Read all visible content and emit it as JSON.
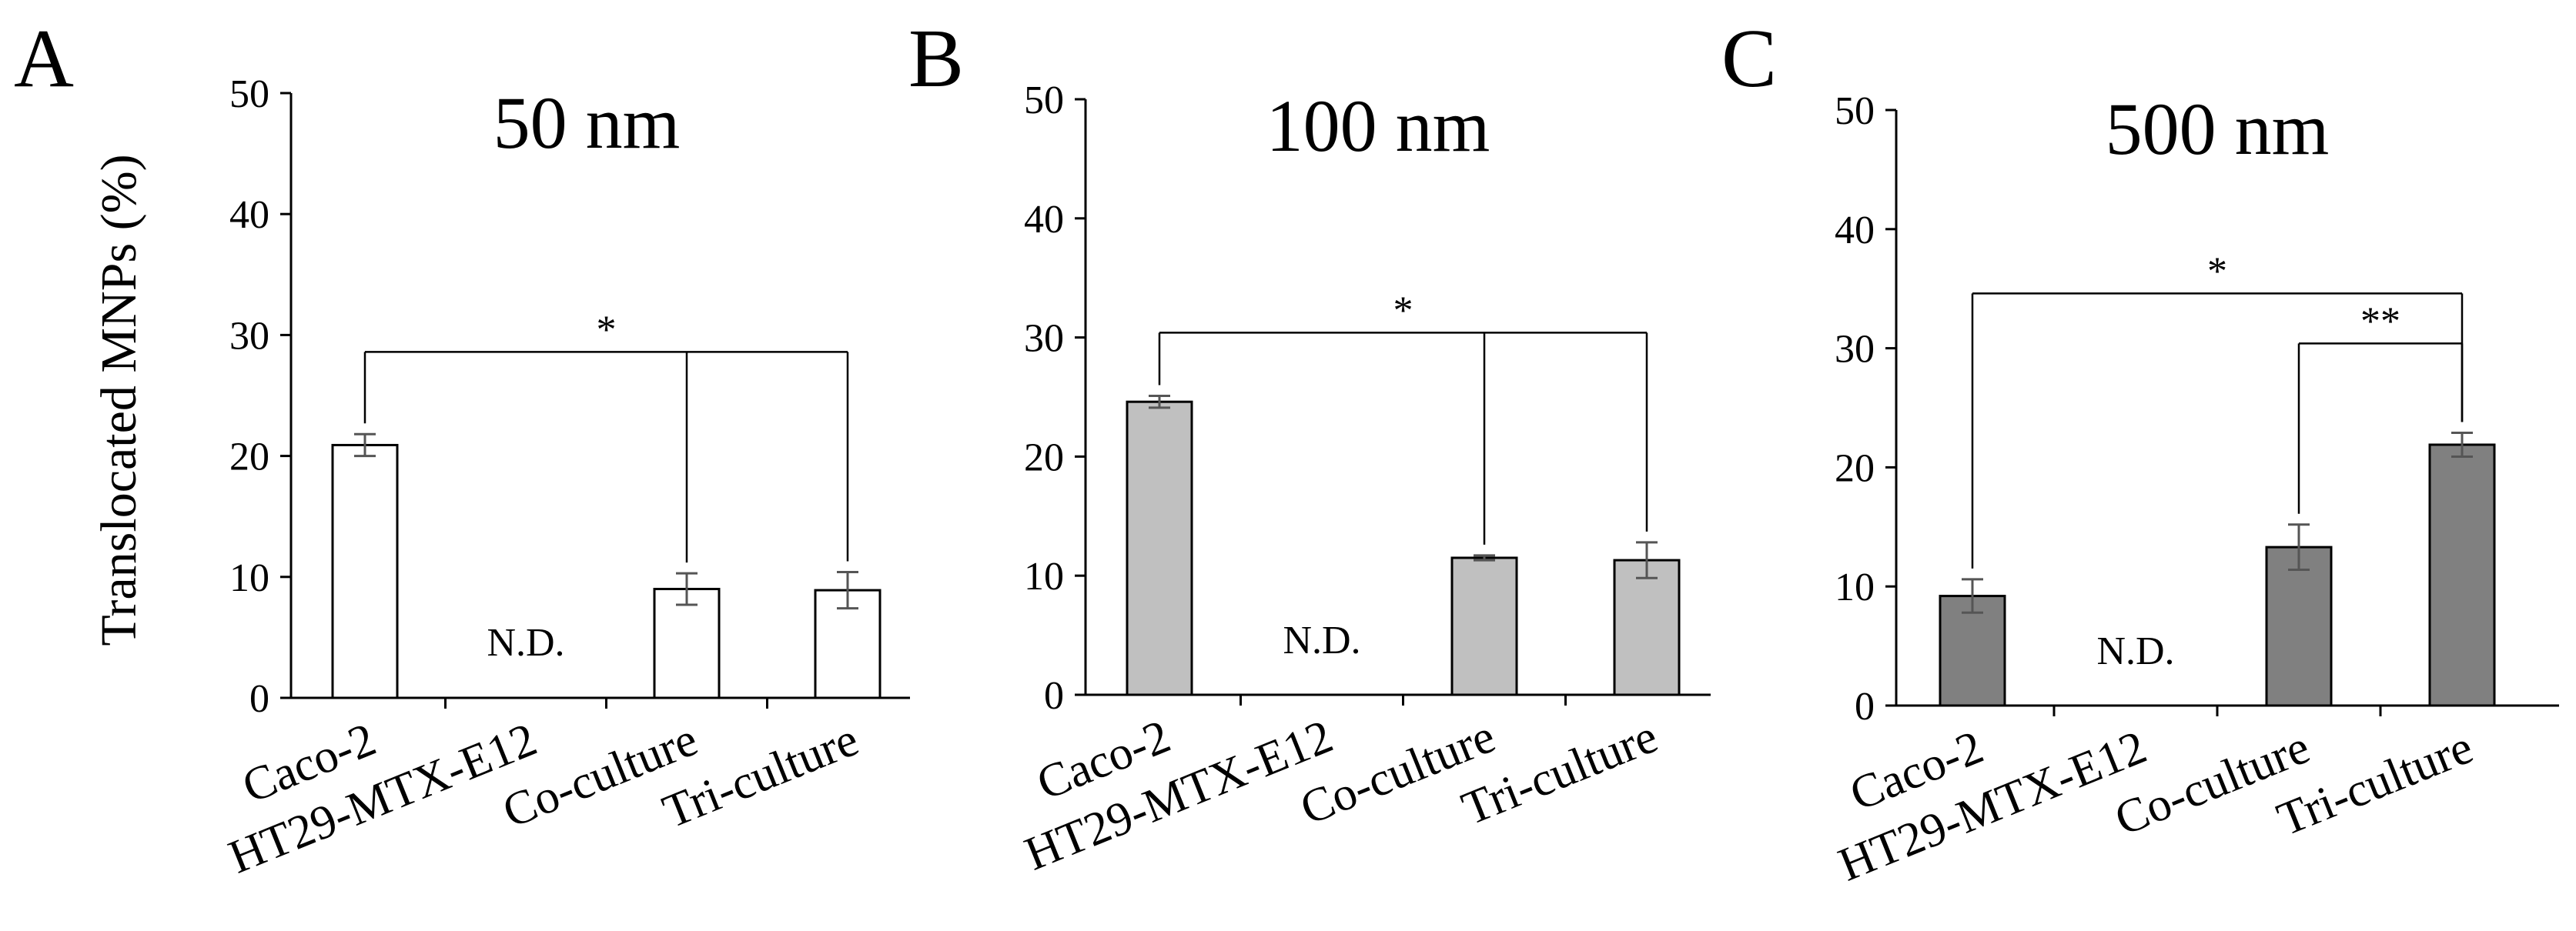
{
  "figure": {
    "ylabel": "Translocated MNPs (%)"
  },
  "chart_data": [
    {
      "type": "bar",
      "panel": "A",
      "title": "50 nm",
      "xlabel": "",
      "ylabel": "Translocated MNPs (%)",
      "ylim": [
        0,
        50
      ],
      "yticks": [
        0,
        10,
        20,
        30,
        40,
        50
      ],
      "categories": [
        "Caco-2",
        "HT29-MTX-E12",
        "Co-culture",
        "Tri-culture"
      ],
      "values": [
        20.9,
        null,
        9.0,
        8.9
      ],
      "errors": [
        0.9,
        null,
        1.3,
        1.5
      ],
      "value_labels": [
        "",
        "N.D.",
        "",
        ""
      ],
      "bar_color": "#ffffff",
      "significance": [
        {
          "label": "*",
          "bracket_y": 28.6,
          "from": 0,
          "to": [
            2,
            3
          ]
        }
      ]
    },
    {
      "type": "bar",
      "panel": "B",
      "title": "100 nm",
      "xlabel": "",
      "ylabel": "",
      "ylim": [
        0,
        50
      ],
      "yticks": [
        0,
        10,
        20,
        30,
        40,
        50
      ],
      "categories": [
        "Caco-2",
        "HT29-MTX-E12",
        "Co-culture",
        "Tri-culture"
      ],
      "values": [
        24.6,
        null,
        11.5,
        11.3
      ],
      "errors": [
        0.5,
        null,
        0.2,
        1.5
      ],
      "value_labels": [
        "",
        "N.D.",
        "",
        ""
      ],
      "bar_color": "#c0c0c0",
      "significance": [
        {
          "label": "*",
          "bracket_y": 30.4,
          "from": 0,
          "to": [
            2,
            3
          ]
        }
      ]
    },
    {
      "type": "bar",
      "panel": "C",
      "title": "500 nm",
      "xlabel": "",
      "ylabel": "",
      "ylim": [
        0,
        50
      ],
      "yticks": [
        0,
        10,
        20,
        30,
        40,
        50
      ],
      "categories": [
        "Caco-2",
        "HT29-MTX-E12",
        "Co-culture",
        "Tri-culture"
      ],
      "values": [
        9.2,
        null,
        13.3,
        21.9
      ],
      "errors": [
        1.4,
        null,
        1.9,
        1.0
      ],
      "value_labels": [
        "",
        "N.D.",
        "",
        ""
      ],
      "bar_color": "#808080",
      "significance": [
        {
          "label": "*",
          "bracket_y": 34.6,
          "from": 0,
          "to": [
            3
          ]
        },
        {
          "label": "**",
          "bracket_y": 30.4,
          "from": 2,
          "to": [
            3
          ]
        }
      ]
    }
  ]
}
